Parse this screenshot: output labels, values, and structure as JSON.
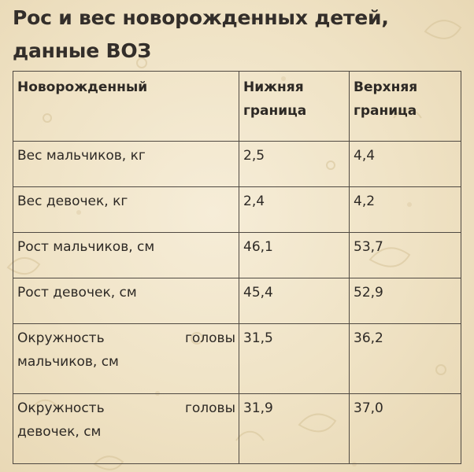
{
  "title": "Рос и вес новорожденных детей, данные ВОЗ",
  "table": {
    "headers": [
      "Новорожденный",
      "Нижняя граница",
      "Верхняя граница"
    ],
    "rows": [
      {
        "label": "Вес мальчиков, кг",
        "lower": "2,5",
        "upper": "4,4"
      },
      {
        "label": "Вес девочек, кг",
        "lower": "2,4",
        "upper": "4,2"
      },
      {
        "label": "Рост мальчиков, см",
        "lower": "46,1",
        "upper": "53,7"
      },
      {
        "label": "Рост девочек, см",
        "lower": "45,4",
        "upper": "52,9"
      },
      {
        "label_word1": "Окружность",
        "label_word2": "головы",
        "label_line2": "мальчиков, см",
        "lower": "31,5",
        "upper": "36,2"
      },
      {
        "label_word1": "Окружность",
        "label_word2": "головы",
        "label_line2": "девочек, см",
        "lower": "31,9",
        "upper": "37,0"
      }
    ]
  },
  "colors": {
    "background": "#efe2c4",
    "pattern": "#d9c7a0",
    "border": "#4f4942",
    "text": "#2d2925"
  }
}
